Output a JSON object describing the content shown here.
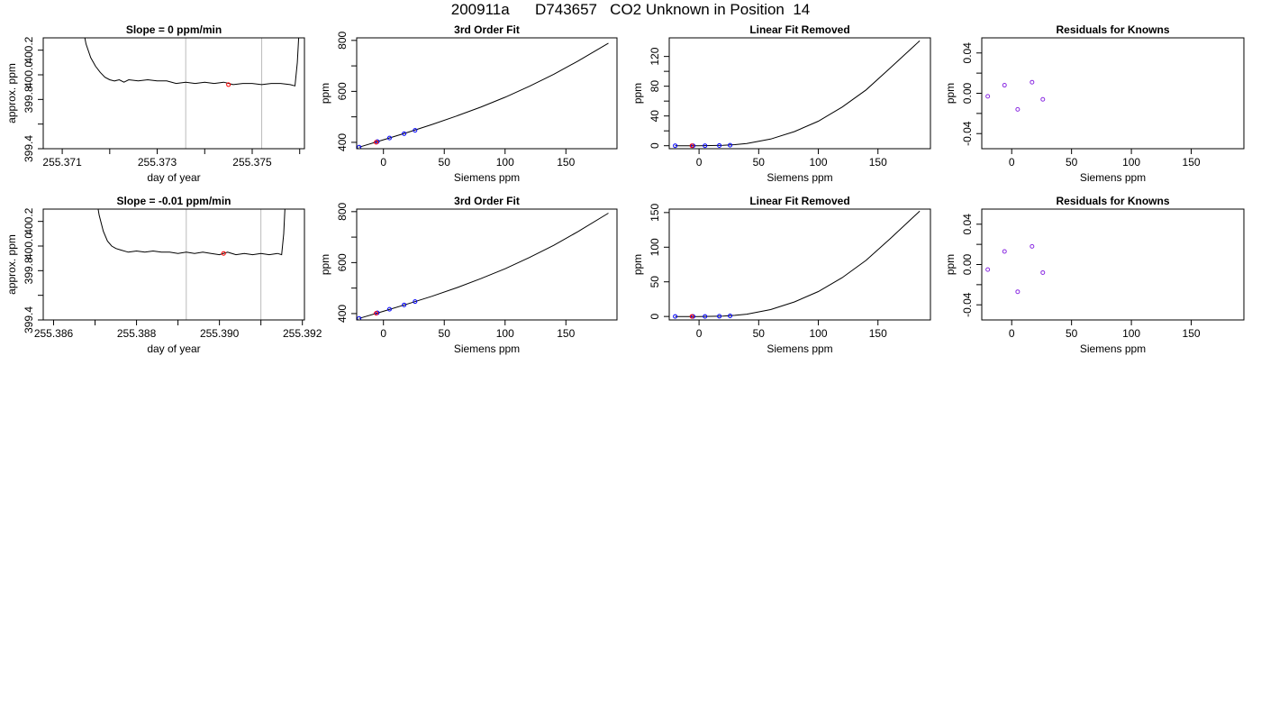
{
  "page": {
    "title": "200911a      D743657   CO2 Unknown in Position  14"
  },
  "colors": {
    "line": "#000000",
    "known_point": "#0000ff",
    "known_point_purple": "#8a2be2",
    "unknown_point": "#ff0000",
    "marker_line": "#bbbbbb"
  },
  "chart_data": [
    {
      "type": "line",
      "title": "Slope =  0  ppm/min",
      "xlabel": "day of year",
      "ylabel": "approx. ppm",
      "xlim": [
        255.3706,
        255.3761
      ],
      "ylim": [
        399.4,
        400.3
      ],
      "xticks": [
        255.371,
        255.372,
        255.373,
        255.374,
        255.375,
        255.376
      ],
      "xtick_labels": [
        "255.371",
        "",
        "255.373",
        "",
        "255.375",
        ""
      ],
      "yticks": [
        399.4,
        399.6,
        399.8,
        400.0,
        400.2
      ],
      "ytick_labels": [
        "399.4",
        "",
        "399.8",
        "400.0",
        "400.2"
      ],
      "marker_lines_x": [
        255.3736,
        255.3752
      ],
      "series": [
        {
          "x": [
            255.3714,
            255.3715,
            255.3716,
            255.3717,
            255.3718,
            255.3719,
            255.372,
            255.3721,
            255.3722,
            255.3723,
            255.3724,
            255.3726,
            255.3728,
            255.373,
            255.3732,
            255.3734,
            255.3736,
            255.3738,
            255.374,
            255.3742,
            255.3744,
            255.3746,
            255.3748,
            255.375,
            255.3752,
            255.3754,
            255.3756,
            255.3758,
            255.3759,
            255.37595,
            255.376
          ],
          "y": [
            400.45,
            400.25,
            400.14,
            400.07,
            400.02,
            399.98,
            399.96,
            399.95,
            399.96,
            399.94,
            399.96,
            399.95,
            399.96,
            399.95,
            399.95,
            399.93,
            399.94,
            399.93,
            399.94,
            399.93,
            399.94,
            399.92,
            399.93,
            399.93,
            399.92,
            399.93,
            399.93,
            399.92,
            399.91,
            400.1,
            400.45
          ]
        }
      ],
      "unknown_point": {
        "x": 255.3745,
        "y": 399.92
      }
    },
    {
      "type": "line",
      "title": "3rd Order Fit",
      "xlabel": "Siemens ppm",
      "ylabel": "ppm",
      "xlim": [
        -22,
        192
      ],
      "ylim": [
        375,
        810
      ],
      "xticks": [
        0,
        50,
        100,
        150
      ],
      "xtick_labels": [
        "0",
        "50",
        "100",
        "150"
      ],
      "yticks": [
        400,
        500,
        600,
        700,
        800
      ],
      "ytick_labels": [
        "400",
        "",
        "600",
        "",
        "800"
      ],
      "fit_curve": {
        "x": [
          -20,
          0,
          20,
          40,
          60,
          80,
          100,
          120,
          140,
          160,
          185
        ],
        "y": [
          381,
          410,
          439,
          470,
          503,
          538,
          577,
          620,
          667,
          719,
          789
        ]
      },
      "known_points": {
        "x": [
          -20,
          -5,
          5,
          17,
          26
        ],
        "y": [
          381,
          403,
          417,
          434,
          447
        ]
      },
      "unknown_point": {
        "x": -6,
        "y": 400
      }
    },
    {
      "type": "line",
      "title": "Linear Fit Removed",
      "xlabel": "Siemens ppm",
      "ylabel": "ppm",
      "xlim": [
        -25,
        194
      ],
      "ylim": [
        -4,
        145
      ],
      "xticks": [
        0,
        50,
        100,
        150
      ],
      "xtick_labels": [
        "0",
        "50",
        "100",
        "150"
      ],
      "yticks": [
        0,
        20,
        40,
        60,
        80,
        100,
        120
      ],
      "ytick_labels": [
        "0",
        "",
        "40",
        "",
        "80",
        "",
        "120"
      ],
      "fit_curve": {
        "x": [
          -20,
          0,
          20,
          30,
          40,
          60,
          80,
          100,
          120,
          140,
          160,
          185
        ],
        "y": [
          0,
          0,
          0.5,
          1.5,
          3,
          9,
          19,
          33,
          52,
          75,
          104,
          141
        ]
      },
      "known_points": {
        "x": [
          -20,
          -5,
          5,
          17,
          26
        ],
        "y": [
          0,
          0,
          0,
          0.3,
          0.7
        ]
      },
      "unknown_point": {
        "x": -6,
        "y": 0
      }
    },
    {
      "type": "scatter",
      "title": "Residuals for Knowns",
      "xlabel": "Siemens ppm",
      "ylabel": "ppm",
      "xlim": [
        -25,
        194
      ],
      "ylim": [
        -0.055,
        0.055
      ],
      "xticks": [
        0,
        50,
        100,
        150
      ],
      "xtick_labels": [
        "0",
        "50",
        "100",
        "150"
      ],
      "yticks": [
        -0.04,
        -0.02,
        0.0,
        0.02,
        0.04
      ],
      "ytick_labels": [
        "-0.04",
        "",
        "0.00",
        "",
        "0.04"
      ],
      "points": {
        "x": [
          -20,
          -6,
          5,
          17,
          26
        ],
        "y": [
          -0.003,
          0.008,
          -0.016,
          0.011,
          -0.006
        ]
      }
    },
    {
      "type": "line",
      "title": "Slope =  -0.01  ppm/min",
      "xlabel": "day of year",
      "ylabel": "approx. ppm",
      "xlim": [
        255.38575,
        255.39205
      ],
      "ylim": [
        399.4,
        400.3
      ],
      "xticks": [
        255.386,
        255.387,
        255.388,
        255.389,
        255.39,
        255.391,
        255.392
      ],
      "xtick_labels": [
        "255.386",
        "",
        "255.388",
        "",
        "255.390",
        "",
        "255.392"
      ],
      "yticks": [
        399.4,
        399.6,
        399.8,
        400.0,
        400.2
      ],
      "ytick_labels": [
        "399.4",
        "",
        "399.8",
        "400.0",
        "400.2"
      ],
      "marker_lines_x": [
        255.3892,
        255.391
      ],
      "series": [
        {
          "x": [
            255.387,
            255.3871,
            255.3872,
            255.3873,
            255.3874,
            255.3875,
            255.3876,
            255.3878,
            255.388,
            255.3882,
            255.3884,
            255.3886,
            255.3888,
            255.389,
            255.3892,
            255.3894,
            255.3896,
            255.3898,
            255.39,
            255.3902,
            255.3904,
            255.3906,
            255.3908,
            255.391,
            255.3912,
            255.3914,
            255.3915,
            255.39155,
            255.3916
          ],
          "y": [
            400.45,
            400.25,
            400.12,
            400.04,
            400.0,
            399.98,
            399.97,
            399.95,
            399.96,
            399.95,
            399.96,
            399.95,
            399.95,
            399.94,
            399.95,
            399.94,
            399.95,
            399.94,
            399.93,
            399.95,
            399.93,
            399.94,
            399.93,
            399.94,
            399.93,
            399.94,
            399.93,
            400.1,
            400.45
          ]
        }
      ],
      "unknown_point": {
        "x": 255.3901,
        "y": 399.94
      }
    },
    {
      "type": "line",
      "title": "3rd Order Fit",
      "xlabel": "Siemens ppm",
      "ylabel": "ppm",
      "xlim": [
        -22,
        192
      ],
      "ylim": [
        375,
        810
      ],
      "xticks": [
        0,
        50,
        100,
        150
      ],
      "xtick_labels": [
        "0",
        "50",
        "100",
        "150"
      ],
      "yticks": [
        400,
        500,
        600,
        700,
        800
      ],
      "ytick_labels": [
        "400",
        "",
        "600",
        "",
        "800"
      ],
      "fit_curve": {
        "x": [
          -20,
          0,
          20,
          40,
          60,
          80,
          100,
          120,
          140,
          160,
          185
        ],
        "y": [
          381,
          409,
          438,
          468,
          501,
          537,
          576,
          620,
          668,
          722,
          794
        ]
      },
      "known_points": {
        "x": [
          -20,
          -5,
          5,
          17,
          26
        ],
        "y": [
          381,
          403,
          417,
          434,
          447
        ]
      },
      "unknown_point": {
        "x": -6,
        "y": 401
      }
    },
    {
      "type": "line",
      "title": "Linear Fit Removed",
      "xlabel": "Siemens ppm",
      "ylabel": "ppm",
      "xlim": [
        -25,
        194
      ],
      "ylim": [
        -5,
        155
      ],
      "xticks": [
        0,
        50,
        100,
        150
      ],
      "xtick_labels": [
        "0",
        "50",
        "100",
        "150"
      ],
      "yticks": [
        0,
        50,
        100,
        150
      ],
      "ytick_labels": [
        "0",
        "50",
        "100",
        "150"
      ],
      "fit_curve": {
        "x": [
          -20,
          0,
          20,
          30,
          40,
          60,
          80,
          100,
          120,
          140,
          160,
          185
        ],
        "y": [
          0,
          0,
          0.6,
          1.6,
          3.3,
          10,
          21,
          36,
          56,
          81,
          112,
          152
        ]
      },
      "known_points": {
        "x": [
          -20,
          -5,
          5,
          17,
          26
        ],
        "y": [
          0,
          0,
          0,
          0.3,
          0.8
        ]
      },
      "unknown_point": {
        "x": -6,
        "y": 0
      }
    },
    {
      "type": "scatter",
      "title": "Residuals for Knowns",
      "xlabel": "Siemens ppm",
      "ylabel": "ppm",
      "xlim": [
        -25,
        194
      ],
      "ylim": [
        -0.055,
        0.055
      ],
      "xticks": [
        0,
        50,
        100,
        150
      ],
      "xtick_labels": [
        "0",
        "50",
        "100",
        "150"
      ],
      "yticks": [
        -0.04,
        -0.02,
        0.0,
        0.02,
        0.04
      ],
      "ytick_labels": [
        "-0.04",
        "",
        "0.00",
        "",
        "0.04"
      ],
      "points": {
        "x": [
          -20,
          -6,
          5,
          17,
          26
        ],
        "y": [
          -0.005,
          0.013,
          -0.027,
          0.018,
          -0.008
        ]
      }
    }
  ]
}
